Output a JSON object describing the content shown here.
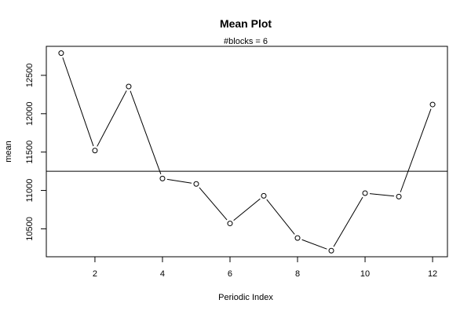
{
  "chart_data": {
    "type": "line",
    "title": "Mean Plot",
    "subtitle": "#blocks =  6",
    "xlabel": "Periodic Index",
    "ylabel": "mean",
    "xlim": [
      0.56,
      12.44
    ],
    "ylim": [
      10136,
      12878
    ],
    "x_ticks": [
      2,
      4,
      6,
      8,
      10,
      12
    ],
    "y_ticks": [
      10500,
      11000,
      11500,
      12000,
      12500
    ],
    "x": [
      1,
      2,
      3,
      4,
      5,
      6,
      7,
      8,
      9,
      10,
      11,
      12
    ],
    "values": [
      12790,
      11520,
      12355,
      11155,
      11085,
      10570,
      10930,
      10380,
      10215,
      10965,
      10920,
      12120
    ],
    "reference_line": 11250,
    "grid": false,
    "legend": "none"
  }
}
